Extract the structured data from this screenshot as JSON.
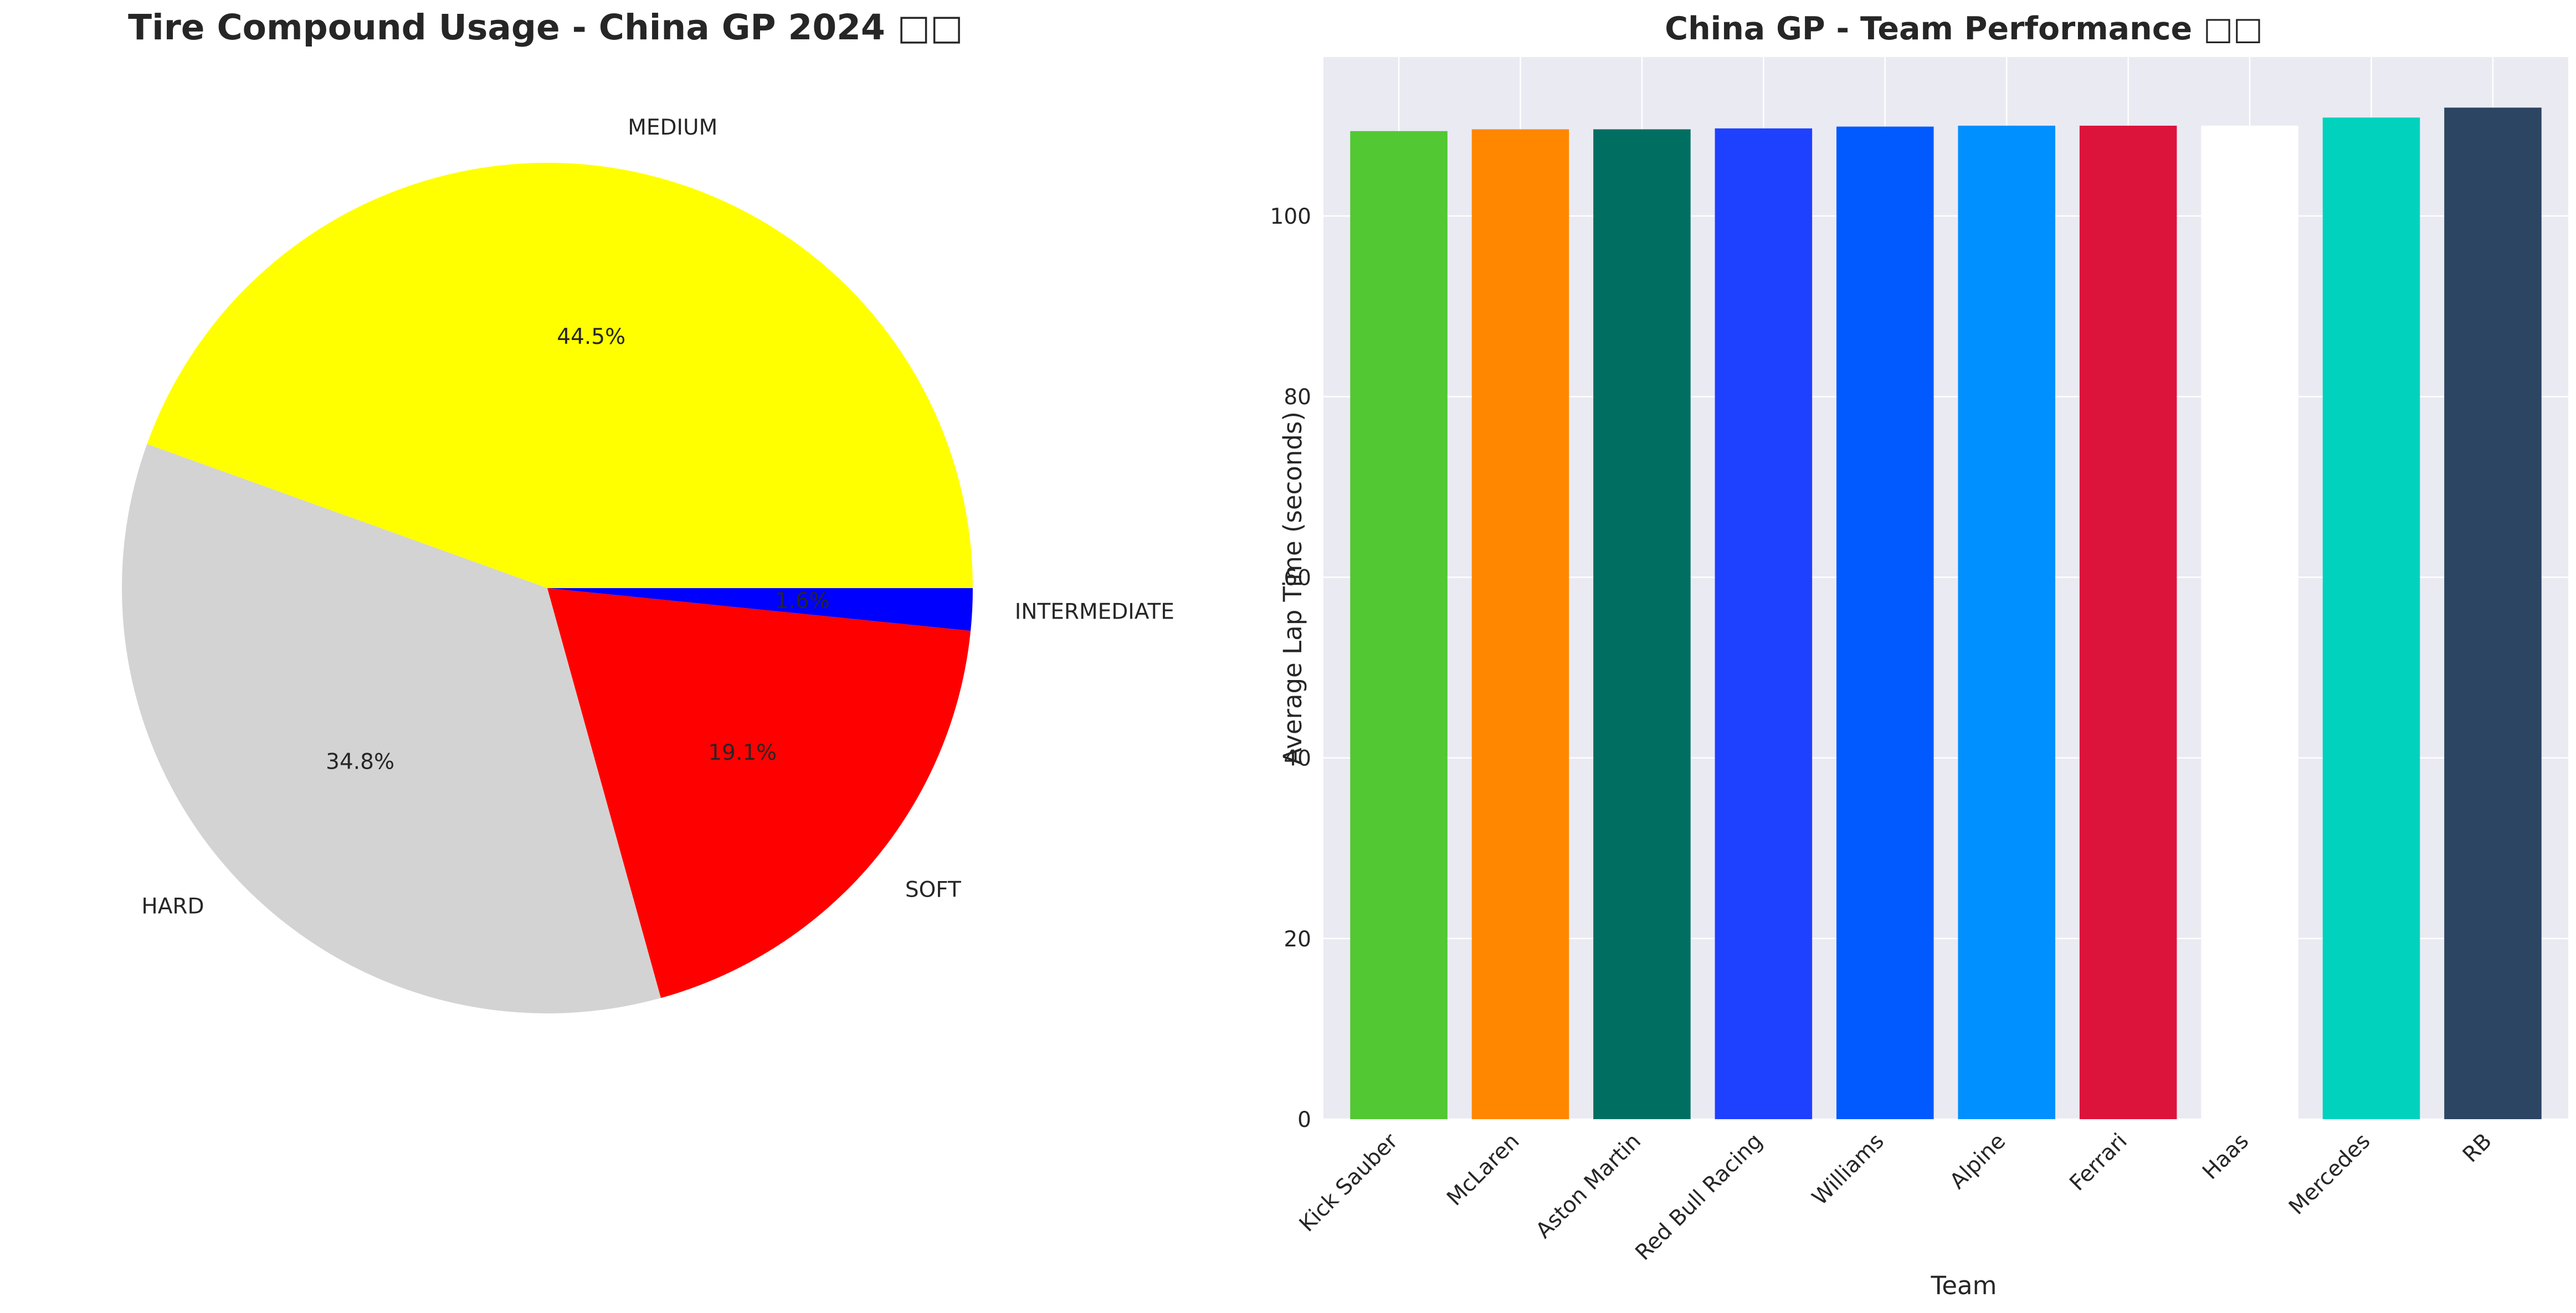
{
  "chart_data": [
    {
      "type": "pie",
      "title": "Tire Compound Usage - China GP 2024 □□",
      "slices": [
        {
          "label": "MEDIUM",
          "value": 44.5,
          "pct_label": "44.5%",
          "color": "#ffff00"
        },
        {
          "label": "HARD",
          "value": 34.8,
          "pct_label": "34.8%",
          "color": "#d3d3d3"
        },
        {
          "label": "SOFT",
          "value": 19.1,
          "pct_label": "19.1%",
          "color": "#ff0000"
        },
        {
          "label": "INTERMEDIATE",
          "value": 1.6,
          "pct_label": "1.6%",
          "color": "#0000ff"
        }
      ],
      "start_angle_deg": 0,
      "direction": "counterclockwise"
    },
    {
      "type": "bar",
      "title": "China GP - Team Performance □□",
      "xlabel": "Team",
      "ylabel": "Average Lap Time (seconds)",
      "categories": [
        "Kick Sauber",
        "McLaren",
        "Aston Martin",
        "Red Bull Racing",
        "Williams",
        "Alpine",
        "Ferrari",
        "Haas",
        "Mercedes",
        "RB"
      ],
      "values": [
        109.4,
        109.6,
        109.6,
        109.7,
        109.9,
        110.0,
        110.0,
        110.0,
        110.9,
        112.0
      ],
      "colors": [
        "#52c832",
        "#ff8700",
        "#006f62",
        "#1e41ff",
        "#005aff",
        "#0090ff",
        "#dc143c",
        "#ffffff",
        "#00d2be",
        "#2b4562"
      ],
      "yticks": [
        0,
        20,
        40,
        60,
        80,
        100
      ],
      "ylim": [
        0,
        117.6
      ],
      "grid": true,
      "background": "#eaeaf2",
      "grid_color": "#ffffff"
    }
  ]
}
